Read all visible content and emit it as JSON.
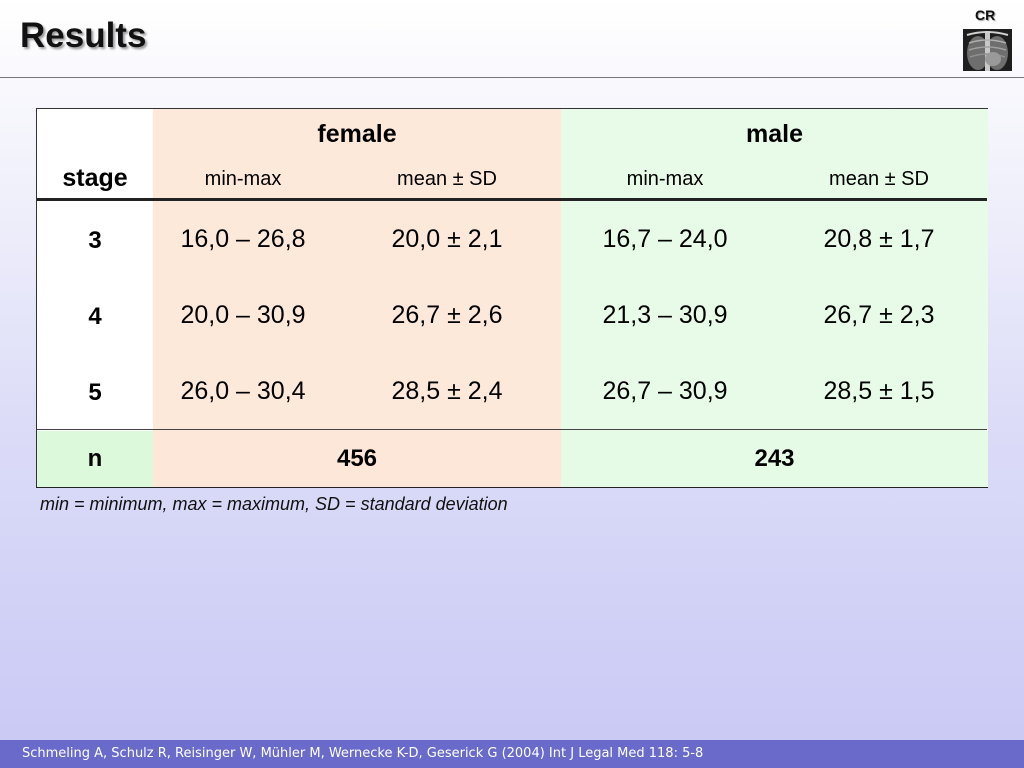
{
  "slide": {
    "title": "Results",
    "badge": "CR",
    "footnote": "min = minimum, max = maximum, SD = standard deviation",
    "citation": "Schmeling A, Schulz R, Reisinger W, Mühler M, Wernecke K-D, Geserick G (2004) Int J Legal Med 118: 5-8"
  },
  "table": {
    "stage_header": "stage",
    "groups": [
      "female",
      "male"
    ],
    "subheaders": [
      "min-max",
      "mean ± SD",
      "min-max",
      "mean ± SD"
    ],
    "rows": [
      {
        "stage": "3",
        "cells": [
          "16,0 – 26,8",
          "20,0 ± 2,1",
          "16,7 – 24,0",
          "20,8 ± 1,7"
        ]
      },
      {
        "stage": "4",
        "cells": [
          "20,0 – 30,9",
          "26,7 ± 2,6",
          "21,3 – 30,9",
          "26,7 ± 2,3"
        ]
      },
      {
        "stage": "5",
        "cells": [
          "26,0 – 30,4",
          "28,5 ± 2,4",
          "26,7 – 30,9",
          "28,5 ± 1,5"
        ]
      }
    ],
    "n_row": {
      "label": "n",
      "female": "456",
      "male": "243"
    }
  },
  "colors": {
    "female_bg": "#fde9da",
    "male_bg": "#e8fbe8",
    "citation_bar": "#6a6acb"
  },
  "icons": [
    "chest-xray-thumbnail"
  ]
}
